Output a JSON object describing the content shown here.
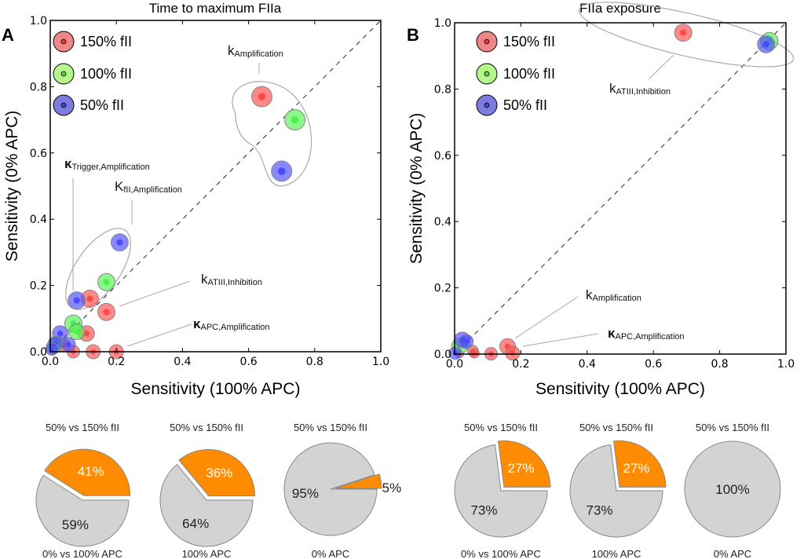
{
  "chart_data": [
    {
      "panel": "A",
      "type": "scatter",
      "title": "Time to maximum FIIa",
      "xlabel": "Sensitivity (100% APC)",
      "ylabel": "Sensitivity (0% APC)",
      "xlim": [
        0,
        1
      ],
      "ylim": [
        0,
        1
      ],
      "xticks": [
        "0.0",
        "0.2",
        "0.4",
        "0.6",
        "0.8",
        "1.0"
      ],
      "yticks": [
        "0.0",
        "0.2",
        "0.4",
        "0.6",
        "0.8",
        "1.0"
      ],
      "grid": false,
      "diagonal": "dashed y = x",
      "legend_position": "top-left",
      "legend": [
        "150% fII",
        "100% fII",
        "50% fII"
      ],
      "series": [
        {
          "name": "150% fII",
          "color": "#ff4a4a",
          "points": [
            [
              0.64,
              0.77
            ],
            [
              0.12,
              0.16
            ],
            [
              0.17,
              0.12
            ],
            [
              0.11,
              0.055
            ],
            [
              0.13,
              0.0
            ],
            [
              0.2,
              0.0
            ],
            [
              0.07,
              0.0
            ],
            [
              0.04,
              0.02
            ],
            [
              0.01,
              0.01
            ]
          ]
        },
        {
          "name": "100% fII",
          "color": "#4ef04e",
          "points": [
            [
              0.74,
              0.7
            ],
            [
              0.17,
              0.21
            ],
            [
              0.07,
              0.085
            ],
            [
              0.08,
              0.06
            ],
            [
              0.02,
              0.025
            ],
            [
              0.01,
              0.015
            ]
          ]
        },
        {
          "name": "50% fII",
          "color": "#4a4aff",
          "points": [
            [
              0.7,
              0.545
            ],
            [
              0.21,
              0.33
            ],
            [
              0.08,
              0.155
            ],
            [
              0.03,
              0.055
            ],
            [
              0.055,
              0.022
            ],
            [
              0.015,
              0.025
            ],
            [
              0.005,
              0.008
            ]
          ]
        }
      ],
      "annotations": [
        {
          "main": "k",
          "sub": "Amplification",
          "bold": false
        },
        {
          "main": "κ",
          "sub": "Trigger,Amplification",
          "bold": true
        },
        {
          "main": "K",
          "sub": "fII,Amplification",
          "bold": false
        },
        {
          "main": "k",
          "sub": "ATIII,Inhibition",
          "bold": false
        },
        {
          "main": "κ",
          "sub": "APC,Amplification",
          "bold": true
        }
      ],
      "pies": [
        {
          "top": "50% vs 150% fII",
          "bottom": "0% vs 100% APC",
          "orange": 41,
          "gray": 59
        },
        {
          "top": "50% vs 150% fII",
          "bottom": "100% APC",
          "orange": 36,
          "gray": 64
        },
        {
          "top": "50% vs 150% fII",
          "bottom": "0% APC",
          "orange": 5,
          "gray": 95
        }
      ]
    },
    {
      "panel": "B",
      "type": "scatter",
      "title": "FIIa exposure",
      "xlabel": "Sensitivity (100% APC)",
      "ylabel": "Sensitivity (0% APC)",
      "xlim": [
        0,
        1
      ],
      "ylim": [
        0,
        1
      ],
      "xticks": [
        "0.0",
        "0.2",
        "0.4",
        "0.6",
        "0.8",
        "1.0"
      ],
      "yticks": [
        "0.0",
        "0.2",
        "0.4",
        "0.6",
        "0.8",
        "1.0"
      ],
      "grid": false,
      "diagonal": "dashed y = x",
      "legend_position": "top-left",
      "legend": [
        "150% fII",
        "100% fII",
        "50% fII"
      ],
      "series": [
        {
          "name": "150% fII",
          "color": "#ff4a4a",
          "points": [
            [
              0.69,
              0.97
            ],
            [
              0.16,
              0.023
            ],
            [
              0.175,
              0.003
            ],
            [
              0.11,
              0.001
            ],
            [
              0.055,
              0.01
            ],
            [
              0.06,
              0.002
            ],
            [
              0.015,
              0.001
            ]
          ]
        },
        {
          "name": "100% fII",
          "color": "#4ef04e",
          "points": [
            [
              0.95,
              0.945
            ],
            [
              0.015,
              0.024
            ]
          ]
        },
        {
          "name": "50% fII",
          "color": "#4a4aff",
          "points": [
            [
              0.94,
              0.935
            ],
            [
              0.023,
              0.043
            ],
            [
              0.035,
              0.038
            ],
            [
              0.002,
              0.003
            ]
          ]
        }
      ],
      "annotations": [
        {
          "main": "k",
          "sub": "ATIII,Inhibition",
          "bold": false
        },
        {
          "main": "k",
          "sub": "Amplification",
          "bold": false
        },
        {
          "main": "κ",
          "sub": "APC,Amplification",
          "bold": true
        }
      ],
      "pies": [
        {
          "top": "50% vs 150% fII",
          "bottom": "0% vs 100% APC",
          "orange": 27,
          "gray": 73
        },
        {
          "top": "50% vs 150% fII",
          "bottom": "100% APC",
          "orange": 27,
          "gray": 73
        },
        {
          "top": "50% vs 150% fII",
          "bottom": "0% APC",
          "orange": 0,
          "gray": 100
        }
      ]
    }
  ],
  "colors": {
    "orange": "#ff8c00",
    "gray": "#d3d3d3"
  }
}
